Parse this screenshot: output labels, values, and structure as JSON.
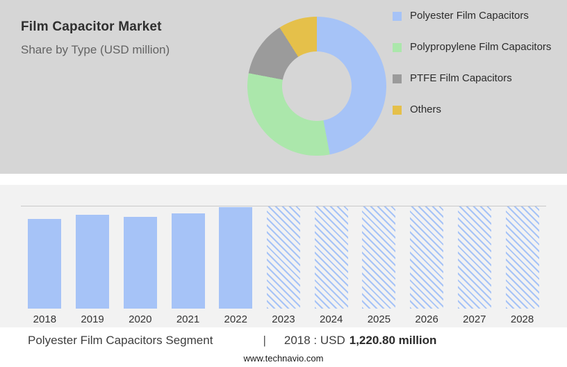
{
  "header": {
    "title": "Film Capacitor Market",
    "subtitle": "Share by Type (USD million)"
  },
  "chart_data": [
    {
      "type": "pie",
      "donut": true,
      "title": "Share by Type (USD million)",
      "labels": [
        "Polyester Film Capacitors",
        "Polypropylene Film Capacitors",
        "PTFE Film Capacitors",
        "Others"
      ],
      "values_pct": [
        47,
        31,
        13,
        9
      ],
      "colors": [
        "#a6c3f7",
        "#abe7ab",
        "#9b9b9b",
        "#e5c04a"
      ],
      "legend_position": "right",
      "note": "segment shares estimated from arc angles; no numeric labels shown in image"
    },
    {
      "type": "bar",
      "categories": [
        "2018",
        "2019",
        "2020",
        "2021",
        "2022",
        "2023",
        "2024",
        "2025",
        "2026",
        "2027",
        "2028"
      ],
      "values_relative_pct": [
        88,
        92,
        90,
        93,
        99,
        100,
        100,
        100,
        100,
        100,
        100
      ],
      "forecast_categories": [
        "2023",
        "2024",
        "2025",
        "2026",
        "2027",
        "2028"
      ],
      "bar_color": "#a6c3f7",
      "known_values": {
        "2018": "USD 1,220.80 million"
      },
      "xlabel": "",
      "ylabel": "",
      "gridlines": "top rule only",
      "note": "no y-axis shown; heights are relative to the top rule"
    }
  ],
  "footer": {
    "segment_label": "Polyester Film Capacitors Segment",
    "separator": "|",
    "value_prefix": "2018 : USD",
    "value_bold": "1,220.80 million",
    "website": "www.technavio.com"
  }
}
